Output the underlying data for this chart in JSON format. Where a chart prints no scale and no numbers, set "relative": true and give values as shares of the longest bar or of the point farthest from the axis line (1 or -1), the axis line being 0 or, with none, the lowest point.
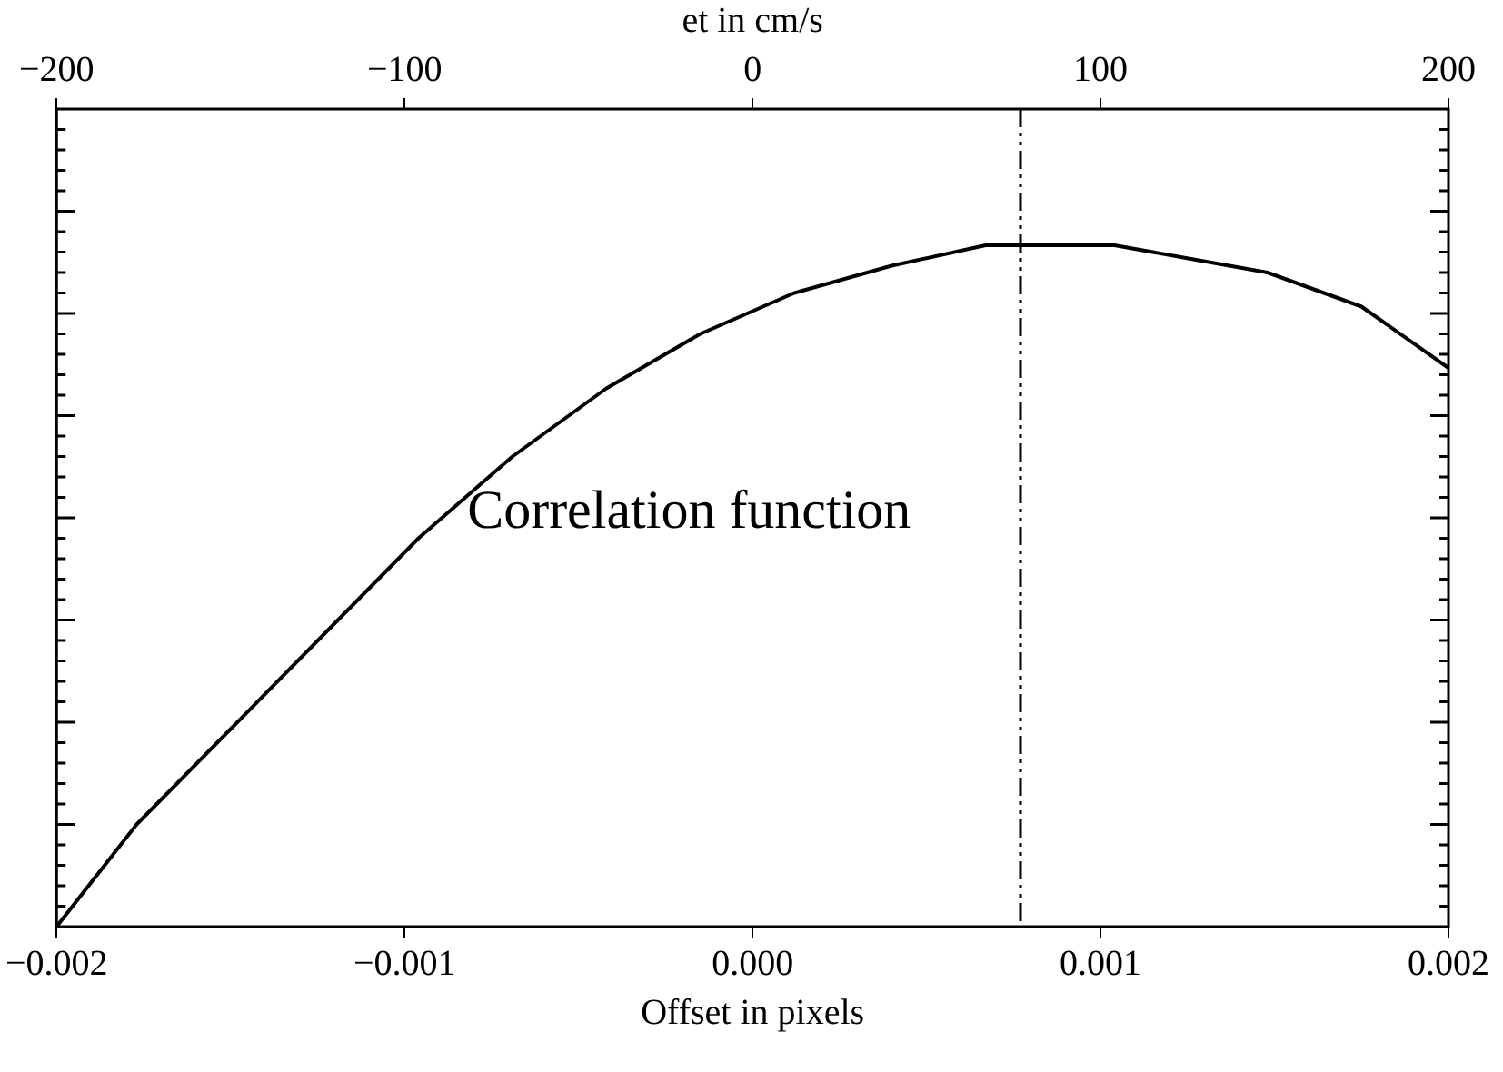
{
  "chart_data": {
    "type": "line",
    "relative": true,
    "xlabel": "Offset in pixels",
    "x2label": "et in cm/s",
    "xlim": [
      -0.002,
      0.002
    ],
    "xticks": [
      {
        "value": -0.002,
        "label": "−0.002"
      },
      {
        "value": -0.001,
        "label": "−0.001"
      },
      {
        "value": 0,
        "label": "0.000"
      },
      {
        "value": 0.001,
        "label": "0.001"
      },
      {
        "value": 0.002,
        "label": "0.002"
      }
    ],
    "x2lim": [
      -200,
      200
    ],
    "x2ticks": [
      {
        "value": -200,
        "label": "−200"
      },
      {
        "value": -100,
        "label": "−100"
      },
      0,
      100,
      200
    ],
    "annotations": [
      "Correlation function"
    ],
    "ref_lines": [
      {
        "axis": "x",
        "value": 0.00077,
        "color": "#000000",
        "line_style": "dashed"
      }
    ],
    "series": [
      {
        "color": "#000000",
        "x": [
          -0.002,
          -0.00177,
          -0.0015,
          -0.00123,
          -0.00096,
          -0.00069,
          -0.00042,
          -0.00015,
          0.00012,
          0.0004,
          0.00067,
          0.00083,
          0.00104,
          0.00126,
          0.00148,
          0.00175,
          0.002
        ],
        "values": [
          0,
          0.15,
          0.29,
          0.43,
          0.57,
          0.69,
          0.79,
          0.87,
          0.93,
          0.97,
          1.0,
          1.0,
          1.0,
          0.98,
          0.96,
          0.91,
          0.82
        ]
      }
    ]
  }
}
